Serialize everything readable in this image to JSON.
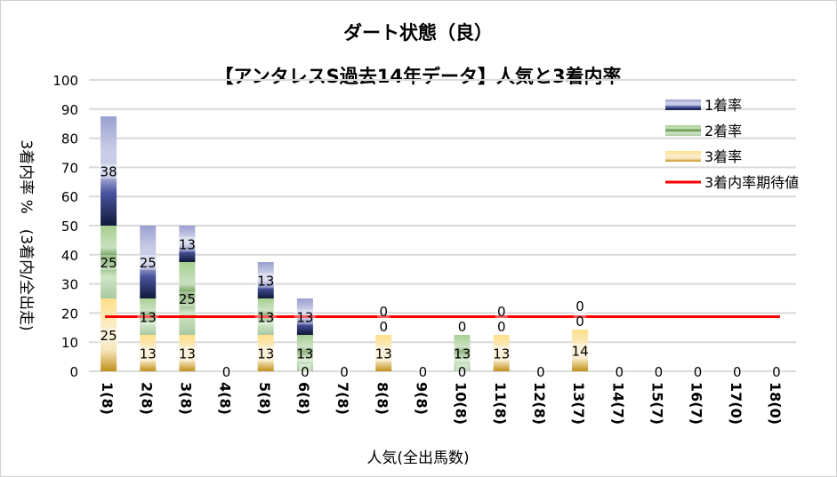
{
  "chart_data": {
    "type": "bar",
    "stacked": true,
    "title": [
      "ダート状態（良）",
      "【アンタレスS過去14年データ】人気と3着内率"
    ],
    "xlabel": "人気(全出馬数)",
    "ylabel": "3着内率 %　(3着内/全出走)",
    "ylim": [
      0,
      100
    ],
    "yticks": [
      0,
      10,
      20,
      30,
      40,
      50,
      60,
      70,
      80,
      90,
      100
    ],
    "grid": true,
    "legend_position": "top-right",
    "categories": [
      "1(8)",
      "2(8)",
      "3(8)",
      "4(8)",
      "5(8)",
      "6(8)",
      "7(8)",
      "8(8)",
      "9(8)",
      "10(8)",
      "11(8)",
      "12(8)",
      "13(7)",
      "14(7)",
      "15(7)",
      "16(7)",
      "17(0)",
      "18(0)"
    ],
    "series": [
      {
        "name": "3着率",
        "color": "#d4a53a",
        "values": [
          25,
          12.5,
          12.5,
          0,
          12.5,
          0,
          0,
          12.5,
          0,
          0,
          12.5,
          0,
          14.3,
          0,
          0,
          0,
          0,
          0
        ],
        "labels": [
          "25",
          "13",
          "13",
          "0",
          "13",
          "0",
          "0",
          "13",
          "0",
          "0",
          "13",
          "0",
          "14",
          "0",
          "0",
          "0",
          "0",
          "0"
        ]
      },
      {
        "name": "2着率",
        "color": "#6fa04e",
        "values": [
          25,
          12.5,
          25,
          0,
          12.5,
          12.5,
          0,
          0,
          0,
          12.5,
          0,
          0,
          0,
          0,
          0,
          0,
          0,
          0
        ],
        "labels": [
          "25",
          "13",
          "25",
          "0",
          "13",
          "13",
          "0",
          "0",
          "0",
          "13",
          "0",
          "0",
          "0",
          "0",
          "0",
          "0",
          "0",
          "0"
        ]
      },
      {
        "name": "1着率",
        "color": "#4a55a0",
        "values": [
          37.5,
          25,
          12.5,
          0,
          12.5,
          12.5,
          0,
          0,
          0,
          0,
          0,
          0,
          0,
          0,
          0,
          0,
          0,
          0
        ],
        "labels": [
          "38",
          "25",
          "13",
          "0",
          "13",
          "13",
          "0",
          "0",
          "0",
          "0",
          "0",
          "0",
          "0",
          "0",
          "0",
          "0",
          "0",
          "0"
        ]
      }
    ],
    "expected_line": {
      "name": "3着内率期待値",
      "color": "#ff0000",
      "value": 18.75
    },
    "legend": [
      "1着率",
      "2着率",
      "3着率",
      "3着内率期待値"
    ]
  }
}
